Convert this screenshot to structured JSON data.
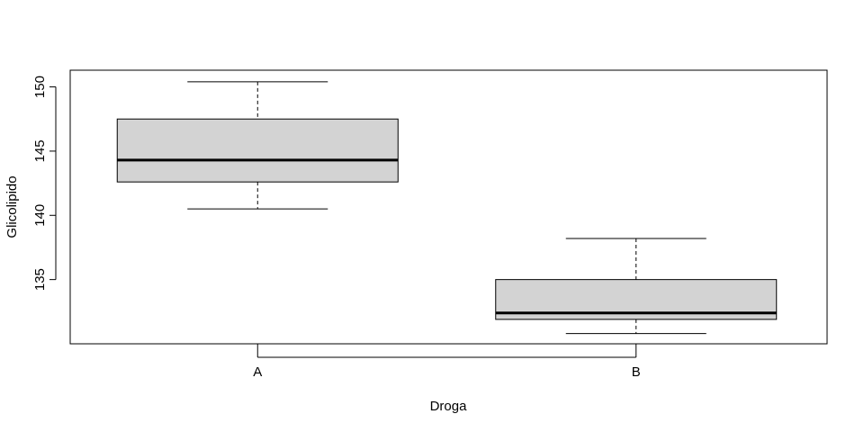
{
  "chart_data": {
    "type": "boxplot",
    "title": "",
    "xlabel": "Droga",
    "ylabel": "Glicolipido",
    "categories": [
      "A",
      "B"
    ],
    "boxes": [
      {
        "category": "A",
        "whisker_low": 140.5,
        "q1": 142.6,
        "median": 144.3,
        "q3": 147.5,
        "whisker_high": 150.4
      },
      {
        "category": "B",
        "whisker_low": 130.8,
        "q1": 131.9,
        "median": 132.4,
        "q3": 135.0,
        "whisker_high": 138.2
      }
    ],
    "y_ticks": [
      135,
      140,
      145,
      150
    ],
    "y_tick_labels": [
      "135",
      "140",
      "145",
      "150"
    ],
    "ylim": [
      130.0,
      151.3
    ],
    "grid": false,
    "legend": "none",
    "colors": {
      "box_fill": "#d3d3d3",
      "stroke": "#000000"
    }
  }
}
